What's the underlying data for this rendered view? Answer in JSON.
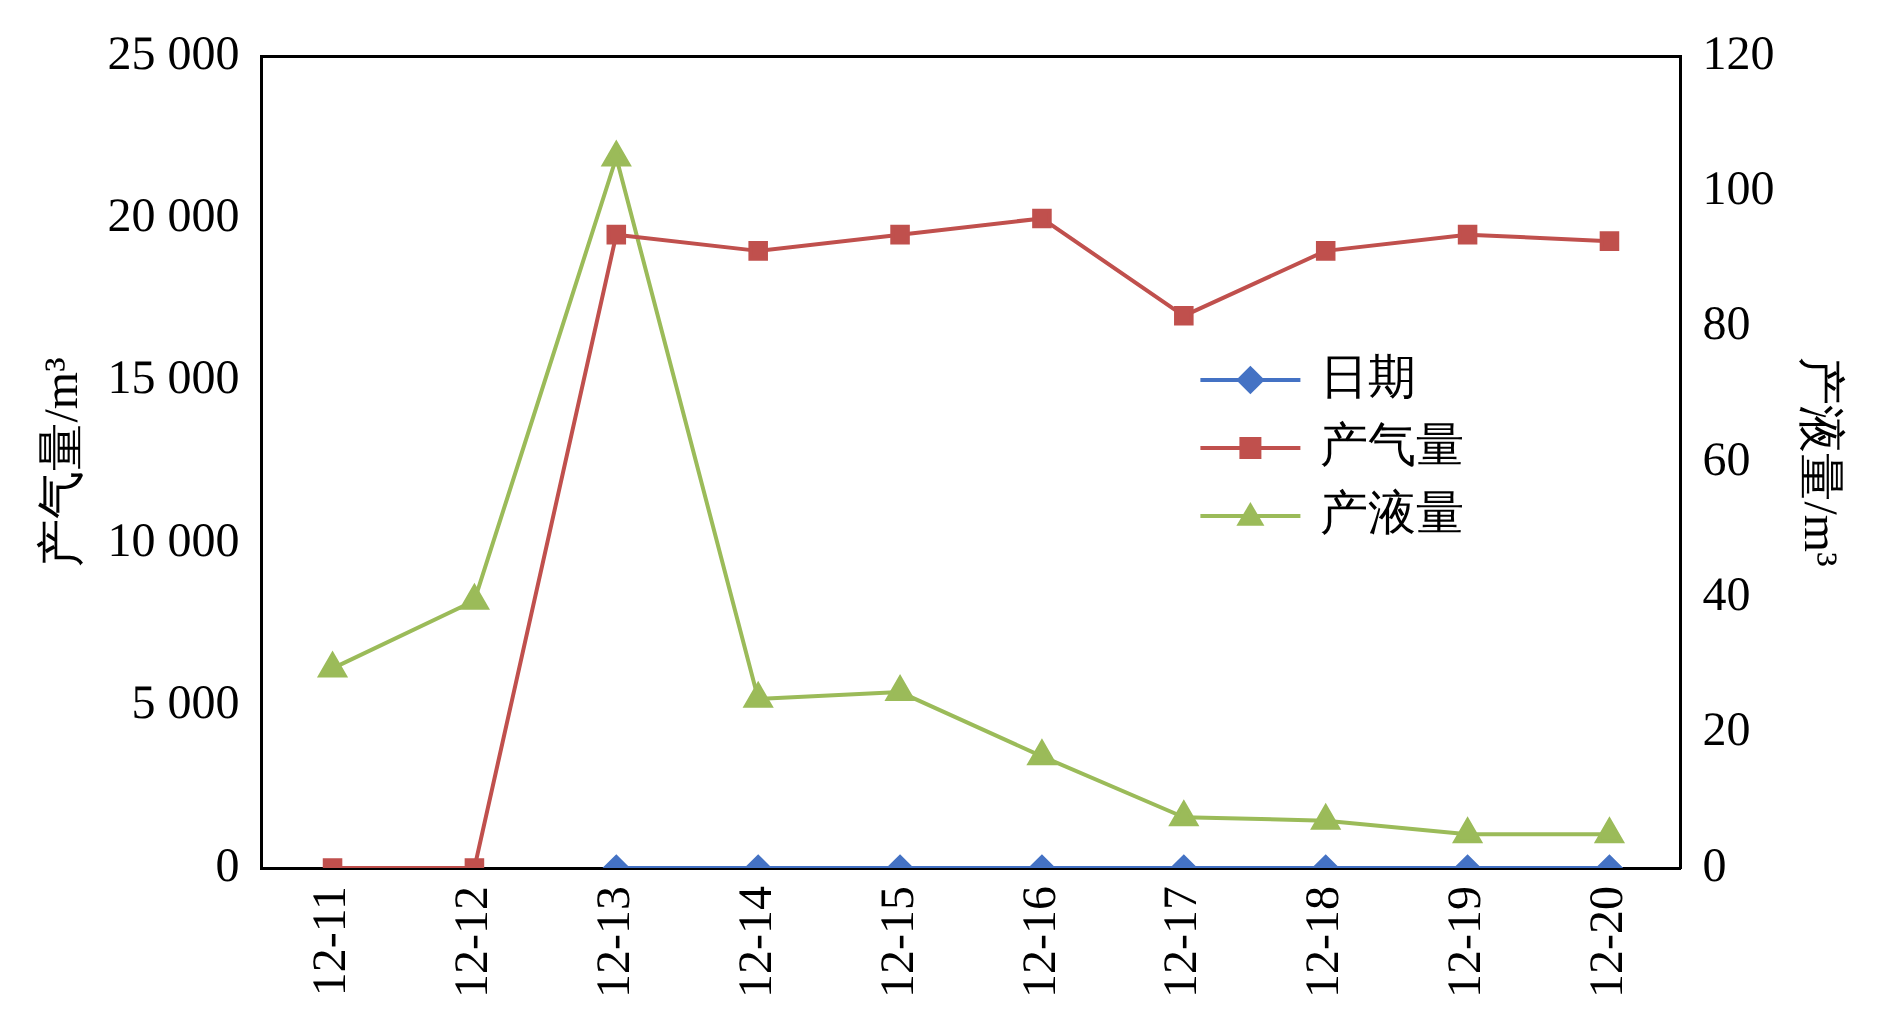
{
  "chart_data": {
    "type": "line",
    "ylabel": "产气量/m³",
    "y2label": "产液量/m³",
    "categories": [
      "12-11",
      "12-12",
      "12-13",
      "12-14",
      "12-15",
      "12-16",
      "12-17",
      "12-18",
      "12-19",
      "12-20"
    ],
    "series": [
      {
        "name": "日期",
        "color": "#4472c4",
        "marker": "diamond",
        "values": [
          null,
          null,
          0,
          0,
          0,
          0,
          0,
          0,
          0,
          0
        ]
      },
      {
        "name": "产气量",
        "color": "#c0504d",
        "marker": "square",
        "values": [
          0,
          0,
          19500,
          19000,
          19500,
          20000,
          17000,
          19000,
          19500,
          19300
        ]
      },
      {
        "name": "产液量",
        "color": "#9bbb59",
        "marker": "triangle",
        "axis": "y2",
        "values": [
          29.5,
          39.5,
          105,
          25,
          26,
          16.5,
          7.5,
          7,
          5,
          5
        ]
      }
    ],
    "ylim": [
      0,
      25000
    ],
    "yticks": [
      0,
      {
        "value": 5000,
        "label": "5 000"
      },
      {
        "value": 10000,
        "label": "10 000"
      },
      {
        "value": 15000,
        "label": "15 000"
      },
      {
        "value": 20000,
        "label": "20 000"
      },
      {
        "value": 25000,
        "label": "25 000"
      }
    ],
    "y2lim": [
      0,
      120
    ],
    "y2ticks": [
      0,
      20,
      40,
      60,
      80,
      100,
      120
    ],
    "grid": false,
    "legend": "right"
  }
}
